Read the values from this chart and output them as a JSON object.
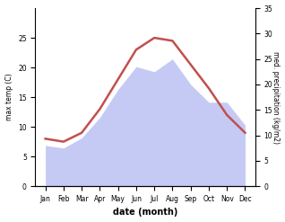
{
  "months": [
    "Jan",
    "Feb",
    "Mar",
    "Apr",
    "May",
    "Jun",
    "Jul",
    "Aug",
    "Sep",
    "Oct",
    "Nov",
    "Dec"
  ],
  "max_temp": [
    8.0,
    7.5,
    9.0,
    13.0,
    18.0,
    23.0,
    25.0,
    24.5,
    20.5,
    16.5,
    12.0,
    9.0
  ],
  "precipitation": [
    8.0,
    7.5,
    9.5,
    13.5,
    19.0,
    23.5,
    22.5,
    25.0,
    20.0,
    16.5,
    16.5,
    12.0
  ],
  "temp_color": "#c0504d",
  "precip_fill_color": "#c5caf5",
  "xlabel": "date (month)",
  "ylabel_left": "max temp (C)",
  "ylabel_right": "med. precipitation (kg/m2)",
  "ylim_left": [
    0,
    30
  ],
  "ylim_right": [
    0,
    35
  ],
  "yticks_left": [
    0,
    5,
    10,
    15,
    20,
    25
  ],
  "yticks_right": [
    0,
    5,
    10,
    15,
    20,
    25,
    30,
    35
  ],
  "temp_linewidth": 1.8,
  "bg_color": "#ffffff"
}
